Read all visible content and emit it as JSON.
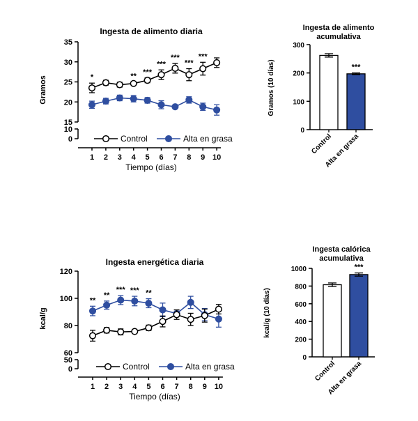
{
  "colors": {
    "control": "#ffffff",
    "high_fat": "#2f4ea0",
    "stroke": "#000000"
  },
  "chart_data": [
    {
      "id": "food-daily",
      "type": "line",
      "title": "Ingesta de alimento diaria",
      "xlabel": "Tiempo (días)",
      "ylabel": "Gramos",
      "x": [
        1,
        2,
        3,
        4,
        5,
        6,
        7,
        8,
        9,
        10
      ],
      "yticks_upper": [
        15,
        20,
        25,
        30,
        35
      ],
      "yticks_lower": [
        0,
        10
      ],
      "ylim_upper": [
        15,
        35
      ],
      "series": [
        {
          "name": "Control",
          "key": "control",
          "values": [
            23.5,
            24.8,
            24.3,
            24.6,
            25.4,
            26.8,
            28.4,
            26.8,
            28.3,
            29.8
          ],
          "errors": [
            1.2,
            0.6,
            0.6,
            0.4,
            0.6,
            1.2,
            1.2,
            1.5,
            1.6,
            1.2
          ]
        },
        {
          "name": "Alta en grasa",
          "key": "high_fat",
          "values": [
            19.3,
            20.2,
            21.0,
            20.8,
            20.4,
            19.3,
            18.8,
            20.5,
            18.8,
            18.0
          ],
          "errors": [
            0.9,
            0.7,
            0.7,
            0.8,
            0.7,
            1.0,
            0.3,
            0.8,
            0.9,
            1.3
          ]
        }
      ],
      "significance": [
        "*",
        "",
        "",
        "**",
        "***",
        "***",
        "***",
        "***",
        "***",
        ""
      ],
      "legend": "bottom"
    },
    {
      "id": "food-cumulative",
      "type": "bar",
      "title": "Ingesta  de alimento acumulativa",
      "title_lines": [
        "Ingesta  de alimento",
        "acumulativa"
      ],
      "ylabel": "Gramos (10 días)",
      "categories": [
        "Control",
        "Alta en grasa"
      ],
      "values": [
        262,
        197
      ],
      "errors": [
        6,
        3
      ],
      "yticks": [
        0,
        100,
        200,
        300
      ],
      "ylim": [
        0,
        300
      ],
      "significance": [
        "",
        "***"
      ]
    },
    {
      "id": "energy-daily",
      "type": "line",
      "title": "Ingesta energética diaria",
      "xlabel": "Tiempo (días)",
      "ylabel": "kcal/g",
      "x": [
        1,
        2,
        3,
        4,
        5,
        6,
        7,
        8,
        9,
        10
      ],
      "yticks_upper": [
        60,
        80,
        100,
        120
      ],
      "yticks_lower": [
        0,
        50
      ],
      "ylim_upper": [
        60,
        120
      ],
      "series": [
        {
          "name": "Control",
          "key": "control",
          "values": [
            72.5,
            76.5,
            75.3,
            75.6,
            78.3,
            83.0,
            88.0,
            84.5,
            87.3,
            92.0
          ],
          "errors": [
            4.0,
            2.0,
            2.2,
            1.2,
            2.0,
            4.0,
            3.5,
            4.5,
            4.8,
            3.5
          ]
        },
        {
          "name": "Alta en grasa",
          "key": "high_fat",
          "values": [
            90.7,
            95.0,
            98.7,
            98.0,
            96.4,
            91.5,
            88.8,
            97.0,
            88.0,
            84.8
          ],
          "errors": [
            3.5,
            3.0,
            3.3,
            3.5,
            3.3,
            5.0,
            1.5,
            4.5,
            4.5,
            6.0
          ]
        }
      ],
      "significance": [
        "**",
        "**",
        "***",
        "***",
        "**",
        "",
        "",
        "",
        "",
        ""
      ],
      "legend": "bottom"
    },
    {
      "id": "calorie-cumulative",
      "type": "bar",
      "title": "Ingesta calórica acumulativa",
      "title_lines": [
        "Ingesta calórica",
        "acumulativa"
      ],
      "ylabel": "kcal/g (10 días)",
      "categories": [
        "Control",
        "Alta en grasa"
      ],
      "values": [
        815,
        930
      ],
      "errors": [
        20,
        18
      ],
      "yticks": [
        0,
        200,
        400,
        600,
        800,
        1000
      ],
      "ylim": [
        0,
        1000
      ],
      "significance": [
        "",
        "***"
      ]
    }
  ]
}
